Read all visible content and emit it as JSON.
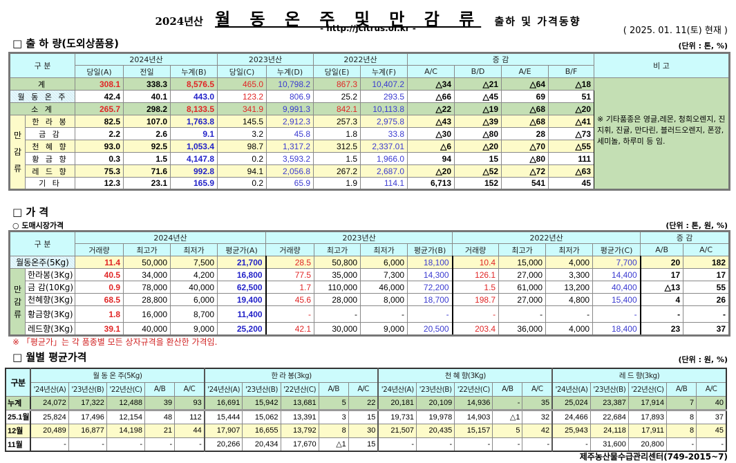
{
  "header": {
    "year": "2024년산",
    "title": "월 동 온 주 및 만 감 류",
    "subtitle": "출하 및 가격동향",
    "url": "- http://jcitrus.or.kr -",
    "date": "( 2025. 01. 11(토) 현재 )"
  },
  "shipment": {
    "section": "□ 출 하 량(도외상품용)",
    "unit": "(단위 : 톤, %)",
    "h_gubun": "구    분",
    "h_2024": "2024년산",
    "h_2023": "2023년산",
    "h_2022": "2022년산",
    "h_change": "증    감",
    "h_note": "비 고",
    "subheaders": [
      "당일(A)",
      "전일",
      "누계(B)",
      "당일(C)",
      "누계(D)",
      "당일(E)",
      "누계(F)",
      "A/C",
      "B/D",
      "A/E",
      "B/F"
    ],
    "group_label": "만\n\n감\n\n류",
    "note": "※ 기타품종은 영글,레몬, 청희오렌지, 진지휘, 진귤, 만다린, 블러드오렌지, 폰깡,세미놀, 하루미 등 임.",
    "rows": [
      {
        "label": "계",
        "values": [
          "308.1",
          "338.3",
          "8,576.5",
          "465.0",
          "10,798.2",
          "867.3",
          "10,407.2",
          "△34",
          "△21",
          "△64",
          "△18"
        ]
      },
      {
        "label": "월 동 온 주",
        "values": [
          "42.4",
          "40.1",
          "443.0",
          "123.2",
          "806.9",
          "25.2",
          "293.5",
          "△66",
          "△45",
          "69",
          "51"
        ]
      },
      {
        "label": "소    계",
        "values": [
          "265.7",
          "298.2",
          "8,133.5",
          "341.9",
          "9,991.3",
          "842.1",
          "10,113.8",
          "△22",
          "△19",
          "△68",
          "△20"
        ]
      },
      {
        "label": "한 라 봉",
        "values": [
          "82.5",
          "107.0",
          "1,763.8",
          "145.5",
          "2,912.3",
          "257.3",
          "2,975.8",
          "△43",
          "△39",
          "△68",
          "△41"
        ]
      },
      {
        "label": "금    감",
        "values": [
          "2.2",
          "2.6",
          "9.1",
          "3.2",
          "45.8",
          "1.8",
          "33.8",
          "△30",
          "△80",
          "28",
          "△73"
        ]
      },
      {
        "label": "천 혜 향",
        "values": [
          "93.0",
          "92.5",
          "1,053.4",
          "98.7",
          "1,317.2",
          "312.5",
          "2,337.01",
          "△6",
          "△20",
          "△70",
          "△55"
        ]
      },
      {
        "label": "황 금 향",
        "values": [
          "0.3",
          "1.5",
          "4,147.8",
          "0.2",
          "3,593.2",
          "1.5",
          "1,966.0",
          "94",
          "15",
          "△80",
          "111"
        ]
      },
      {
        "label": "레 드 향",
        "values": [
          "75.3",
          "71.6",
          "992.8",
          "94.1",
          "2,056.8",
          "267.2",
          "2,687.0",
          "△20",
          "△52",
          "△72",
          "△63"
        ]
      },
      {
        "label": "기    타",
        "values": [
          "12.3",
          "23.1",
          "165.9",
          "0.2",
          "65.9",
          "1.9",
          "114.1",
          "6,713",
          "152",
          "541",
          "45"
        ]
      }
    ]
  },
  "price": {
    "section": "□ 가      격",
    "subsection": "○ 도매시장가격",
    "unit": "(단위 : 톤, 원, %)",
    "h_gubun": "구    분",
    "h_2024": "2024년산",
    "h_2023": "2023년산",
    "h_2022": "2022년산",
    "h_change": "증    감",
    "subheaders": [
      "거래량",
      "최고가",
      "최저가",
      "평균가(A)",
      "거래량",
      "최고가",
      "최저가",
      "평균가(B)",
      "거래량",
      "최고가",
      "최저가",
      "평균가(C)",
      "A/B",
      "A/C"
    ],
    "group_label": "만\n감\n류",
    "rows": [
      {
        "label": "월동온주(5Kg)",
        "values": [
          "11.4",
          "50,000",
          "7,500",
          "21,700",
          "28.5",
          "50,800",
          "6,000",
          "18,100",
          "10.4",
          "15,000",
          "4,000",
          "7,700",
          "20",
          "182"
        ]
      },
      {
        "label": "한라봉(3Kg)",
        "values": [
          "40.5",
          "34,000",
          "4,200",
          "16,800",
          "77.5",
          "35,000",
          "7,300",
          "14,300",
          "126.1",
          "27,000",
          "3,300",
          "14,400",
          "17",
          "17"
        ]
      },
      {
        "label": "금 감(10Kg)",
        "values": [
          "0.9",
          "78,000",
          "40,000",
          "62,500",
          "1.7",
          "110,000",
          "46,000",
          "72,200",
          "1.5",
          "61,000",
          "13,200",
          "40,400",
          "△13",
          "55"
        ]
      },
      {
        "label": "천혜향(3Kg)",
        "values": [
          "68.5",
          "28,800",
          "6,000",
          "19,400",
          "45.6",
          "28,000",
          "8,000",
          "18,700",
          "198.7",
          "27,000",
          "4,800",
          "15,400",
          "4",
          "26"
        ]
      },
      {
        "label": "황금향(3Kg)",
        "values": [
          "1.8",
          "16,000",
          "8,700",
          "11,400",
          "-",
          "-",
          "-",
          "-",
          "-",
          "-",
          "-",
          "-",
          "-",
          "-"
        ]
      },
      {
        "label": "레드향(3Kg)",
        "values": [
          "39.1",
          "40,000",
          "9,000",
          "25,200",
          "42.1",
          "30,000",
          "9,000",
          "20,500",
          "203.4",
          "36,000",
          "4,000",
          "18,400",
          "23",
          "37"
        ]
      }
    ],
    "footnote": "※ 「평균가」는 각 품종별 모든 상자규격을 환산한 가격임."
  },
  "monthly": {
    "section": "□ 월별 평균가격",
    "unit": "(단위 : 원, %)",
    "h_gubun": "구분",
    "groups": [
      "월 동 온 주(5Kg)",
      "한  라  봉(3kg)",
      "천 혜 향(3Kg)",
      "레 드 향(3kg)"
    ],
    "subheaders": [
      "'24년산(A)",
      "'23년산(B)",
      "'22년산(C)",
      "A/B",
      "A/C"
    ],
    "rows": [
      {
        "label": "누계",
        "values": [
          "24,072",
          "17,322",
          "12,488",
          "39",
          "93",
          "16,691",
          "15,942",
          "13,681",
          "5",
          "22",
          "20,181",
          "20,109",
          "14,936",
          "-",
          "35",
          "25,024",
          "23,387",
          "17,914",
          "7",
          "40"
        ]
      },
      {
        "label": "25.1월",
        "values": [
          "25,824",
          "17,496",
          "12,154",
          "48",
          "112",
          "15,444",
          "15,062",
          "13,391",
          "3",
          "15",
          "19,731",
          "19,978",
          "14,903",
          "△1",
          "32",
          "24,466",
          "22,684",
          "17,893",
          "8",
          "37"
        ]
      },
      {
        "label": "12월",
        "values": [
          "20,489",
          "16,877",
          "14,198",
          "21",
          "44",
          "17,907",
          "16,655",
          "13,792",
          "8",
          "30",
          "21,507",
          "20,435",
          "15,157",
          "5",
          "42",
          "25,943",
          "24,118",
          "17,911",
          "8",
          "45"
        ]
      },
      {
        "label": "11월",
        "values": [
          "-",
          "-",
          "-",
          "-",
          "-",
          "20,266",
          "20,434",
          "17,670",
          "△1",
          "15",
          "-",
          "-",
          "-",
          "-",
          "-",
          "-",
          "31,600",
          "20,800",
          "-",
          "-"
        ]
      }
    ]
  },
  "footer": {
    "signature": "제주농산물수급관리센터(749-2015~7)"
  }
}
